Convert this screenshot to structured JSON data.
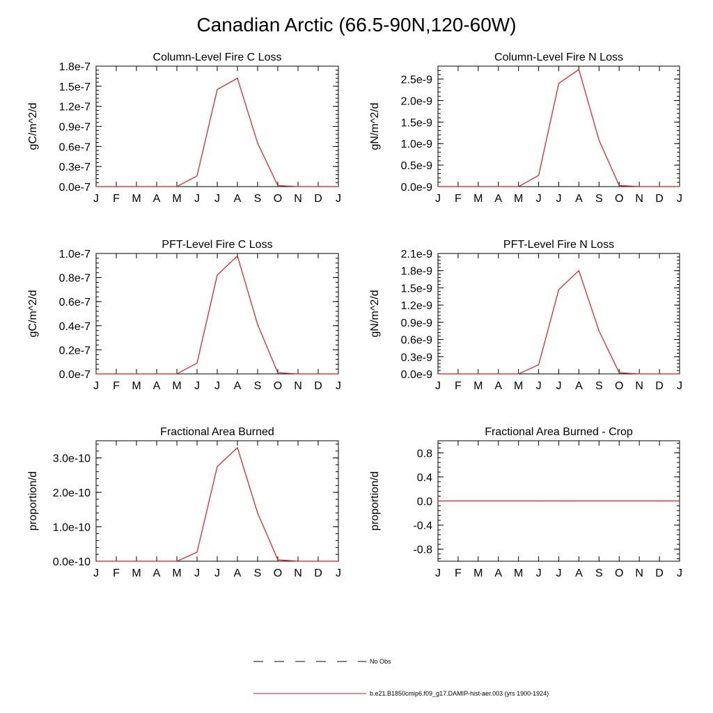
{
  "title": "Canadian Arctic (66.5-90N,120-60W)",
  "months": [
    "J",
    "F",
    "M",
    "A",
    "M",
    "J",
    "J",
    "A",
    "S",
    "O",
    "N",
    "D",
    "J"
  ],
  "line_color": "#e8151a",
  "chart_data": [
    {
      "type": "line",
      "title": "Column-Level Fire C Loss",
      "ylabel": "gC/m^2/d",
      "categories": [
        "J",
        "F",
        "M",
        "A",
        "M",
        "J",
        "J",
        "A",
        "S",
        "O",
        "N",
        "D",
        "J"
      ],
      "ylim": [
        0,
        1.8e-07
      ],
      "yticks": [
        0,
        3e-08,
        6e-08,
        9e-08,
        1.2e-07,
        1.5e-07,
        1.8e-07
      ],
      "yticklabels": [
        "0.0e-7",
        "0.3e-7",
        "0.6e-7",
        "0.9e-7",
        "1.2e-7",
        "1.5e-7",
        "1.8e-7"
      ],
      "series": [
        {
          "name": "b.e21.B1850cmip6.f09_g17.DAMIP-hist-aer.003 (yrs 1900-1924)",
          "values": [
            0,
            0,
            0,
            0,
            0,
            1.6e-08,
            1.45e-07,
            1.62e-07,
            6.5e-08,
            1.5e-09,
            0,
            0,
            0
          ]
        }
      ]
    },
    {
      "type": "line",
      "title": "Column-Level Fire N Loss",
      "ylabel": "gN/m^2/d",
      "categories": [
        "J",
        "F",
        "M",
        "A",
        "M",
        "J",
        "J",
        "A",
        "S",
        "O",
        "N",
        "D",
        "J"
      ],
      "ylim": [
        0,
        2.8e-09
      ],
      "yticks": [
        0,
        5e-10,
        1e-09,
        1.5e-09,
        2e-09,
        2.5e-09
      ],
      "yticklabels": [
        "0.0e-9",
        "0.5e-9",
        "1.0e-9",
        "1.5e-9",
        "2.0e-9",
        "2.5e-9"
      ],
      "series": [
        {
          "name": "b.e21.B1850cmip6.f09_g17.DAMIP-hist-aer.003 (yrs 1900-1924)",
          "values": [
            0,
            0,
            0,
            0,
            0,
            2.6e-10,
            2.4e-09,
            2.72e-09,
            1.08e-09,
            2.5e-11,
            0,
            0,
            0
          ]
        }
      ]
    },
    {
      "type": "line",
      "title": "PFT-Level Fire C Loss",
      "ylabel": "gC/m^2/d",
      "categories": [
        "J",
        "F",
        "M",
        "A",
        "M",
        "J",
        "J",
        "A",
        "S",
        "O",
        "N",
        "D",
        "J"
      ],
      "ylim": [
        0,
        1e-07
      ],
      "yticks": [
        0,
        2e-08,
        4e-08,
        6e-08,
        8e-08,
        1e-07
      ],
      "yticklabels": [
        "0.0e-7",
        "0.2e-7",
        "0.4e-7",
        "0.6e-7",
        "0.8e-7",
        "1.0e-7"
      ],
      "series": [
        {
          "name": "b.e21.B1850cmip6.f09_g17.DAMIP-hist-aer.003 (yrs 1900-1924)",
          "values": [
            0,
            0,
            0,
            0,
            0,
            9e-09,
            8.2e-08,
            9.8e-08,
            4.1e-08,
            1e-09,
            0,
            0,
            0
          ]
        }
      ]
    },
    {
      "type": "line",
      "title": "PFT-Level Fire N Loss",
      "ylabel": "gN/m^2/d",
      "categories": [
        "J",
        "F",
        "M",
        "A",
        "M",
        "J",
        "J",
        "A",
        "S",
        "O",
        "N",
        "D",
        "J"
      ],
      "ylim": [
        0,
        2.1e-09
      ],
      "yticks": [
        0,
        3e-10,
        6e-10,
        9e-10,
        1.2e-09,
        1.5e-09,
        1.8e-09,
        2.1e-09
      ],
      "yticklabels": [
        "0.0e-9",
        "0.3e-9",
        "0.6e-9",
        "0.9e-9",
        "1.2e-9",
        "1.5e-9",
        "1.8e-9",
        "2.1e-9"
      ],
      "series": [
        {
          "name": "b.e21.B1850cmip6.f09_g17.DAMIP-hist-aer.003 (yrs 1900-1924)",
          "values": [
            0,
            0,
            0,
            0,
            0,
            1.6e-10,
            1.47e-09,
            1.8e-09,
            7.5e-10,
            2e-11,
            0,
            0,
            0
          ]
        }
      ]
    },
    {
      "type": "line",
      "title": "Fractional Area Burned",
      "ylabel": "proportion/d",
      "categories": [
        "J",
        "F",
        "M",
        "A",
        "M",
        "J",
        "J",
        "A",
        "S",
        "O",
        "N",
        "D",
        "J"
      ],
      "ylim": [
        0,
        3.5e-10
      ],
      "yticks": [
        0,
        1e-10,
        2e-10,
        3e-10
      ],
      "yticklabels": [
        "0.0e-10",
        "1.0e-10",
        "2.0e-10",
        "3.0e-10"
      ],
      "series": [
        {
          "name": "b.e21.B1850cmip6.f09_g17.DAMIP-hist-aer.003 (yrs 1900-1924)",
          "values": [
            0,
            0,
            0,
            0,
            0,
            2.6e-11,
            2.75e-10,
            3.3e-10,
            1.4e-10,
            4e-12,
            0,
            0,
            0
          ]
        }
      ]
    },
    {
      "type": "line",
      "title": "Fractional Area Burned - Crop",
      "ylabel": "proportion/d",
      "categories": [
        "J",
        "F",
        "M",
        "A",
        "M",
        "J",
        "J",
        "A",
        "S",
        "O",
        "N",
        "D",
        "J"
      ],
      "ylim": [
        -1.0,
        1.0
      ],
      "yticks": [
        -0.8,
        -0.4,
        0,
        0.4,
        0.8
      ],
      "yticklabels": [
        "-0.8",
        "-0.4",
        "0.0",
        "0.4",
        "0.8"
      ],
      "series": [
        {
          "name": "b.e21.B1850cmip6.f09_g17.DAMIP-hist-aer.003 (yrs 1900-1924)",
          "values": [
            0,
            0,
            0,
            0,
            0,
            0,
            0,
            0,
            0,
            0,
            0,
            0,
            0
          ]
        }
      ]
    }
  ],
  "legend": [
    {
      "label": "No Obs",
      "style": "dashed",
      "color": "#000000"
    },
    {
      "label": "b.e21.B1850cmip6.f09_g17.DAMIP-hist-aer.003 (yrs 1900-1924)",
      "style": "solid",
      "color": "#e8151a"
    }
  ]
}
